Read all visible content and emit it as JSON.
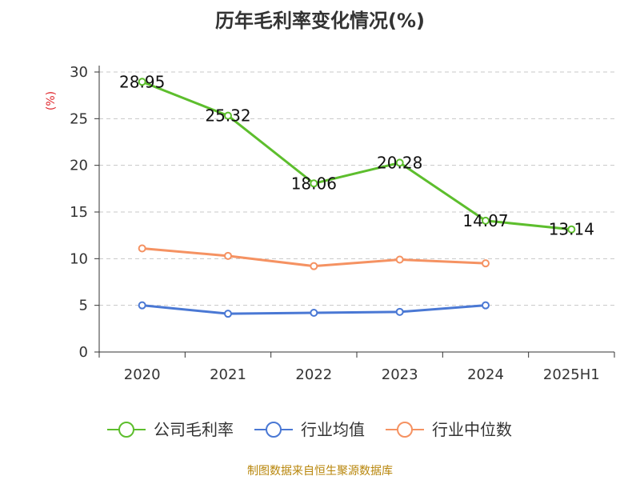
{
  "chart_data": {
    "type": "line",
    "title": "历年毛利率变化情况(%)",
    "ylabel": "(%)",
    "categories": [
      "2020",
      "2021",
      "2022",
      "2023",
      "2024",
      "2025H1"
    ],
    "ylim": [
      0,
      30
    ],
    "yticks": [
      0,
      5,
      10,
      15,
      20,
      25,
      30
    ],
    "grid": true,
    "legend_position": "bottom",
    "series": [
      {
        "name": "公司毛利率",
        "color": "#5dbe2d",
        "values": [
          28.95,
          25.32,
          18.06,
          20.28,
          14.07,
          13.14
        ],
        "labels": true
      },
      {
        "name": "行业均值",
        "color": "#4a78d4",
        "values": [
          5.0,
          4.1,
          4.2,
          4.3,
          5.0,
          null
        ],
        "labels": false
      },
      {
        "name": "行业中位数",
        "color": "#f59262",
        "values": [
          11.1,
          10.3,
          9.2,
          9.9,
          9.5,
          null
        ],
        "labels": false
      }
    ]
  },
  "source": "制图数据来自恒生聚源数据库"
}
